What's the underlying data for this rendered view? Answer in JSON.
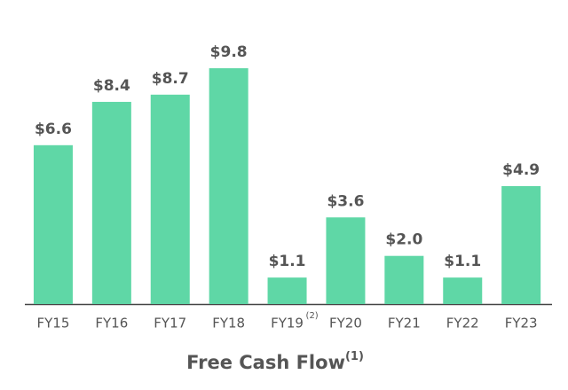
{
  "chart_data": {
    "type": "bar",
    "title": "Free Cash Flow",
    "title_note": "(1)",
    "categories": [
      "FY15",
      "FY16",
      "FY17",
      "FY18",
      "FY19",
      "FY20",
      "FY21",
      "FY22",
      "FY23"
    ],
    "category_notes": [
      null,
      null,
      null,
      null,
      "(2)",
      null,
      null,
      null,
      null
    ],
    "values": [
      6.6,
      8.4,
      8.7,
      9.8,
      1.1,
      3.6,
      2.0,
      1.1,
      4.9
    ],
    "value_labels": [
      "$6.6",
      "$8.4",
      "$8.7",
      "$9.8",
      "$1.1",
      "$3.6",
      "$2.0",
      "$1.1",
      "$4.9"
    ],
    "color": "#5fd7a6"
  }
}
